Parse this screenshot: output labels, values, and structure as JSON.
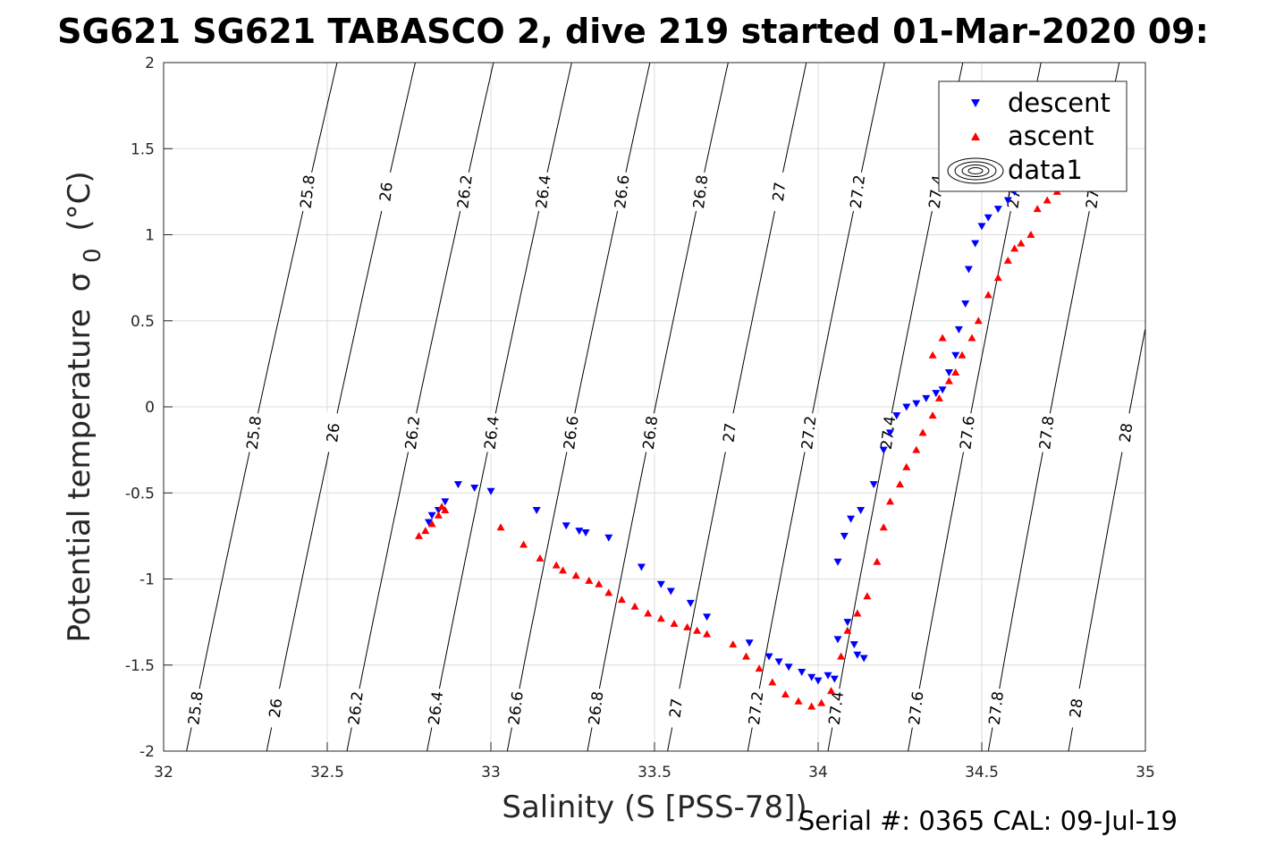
{
  "chart_data": {
    "type": "scatter",
    "title": "SG621 SG621 TABASCO 2, dive 219 started 01-Mar-2020 09:",
    "xlabel": "Salinity (S [PSS-78])",
    "ylabel": "Potential temperature",
    "ylabel_symbol": "σ",
    "ylabel_sub": "0",
    "ylabel_unit": "(°C)",
    "xlim": [
      32,
      35
    ],
    "ylim": [
      -2,
      2
    ],
    "xticks": [
      32,
      32.5,
      33,
      33.5,
      34,
      34.5,
      35
    ],
    "xtick_labels": [
      "32",
      "32.5",
      "33",
      "33.5",
      "34",
      "34.5",
      "35"
    ],
    "yticks": [
      -2,
      -1.5,
      -1,
      -0.5,
      0,
      0.5,
      1,
      1.5,
      2
    ],
    "ytick_labels": [
      "-2",
      "-1.5",
      "-1",
      "-0.5",
      "0",
      "0.5",
      "1",
      "1.5",
      "2"
    ],
    "grid": true,
    "legend_placement": "top-right",
    "contours": {
      "levels": [
        25.8,
        26,
        26.2,
        26.4,
        26.6,
        26.8,
        27,
        27.2,
        27.4,
        27.6,
        27.8,
        28
      ],
      "labels": [
        "25.8",
        "26",
        "26.2",
        "26.4",
        "26.6",
        "26.8",
        "27",
        "27.2",
        "27.4",
        "27.6",
        "27.8",
        "28"
      ],
      "color": "#000000"
    },
    "series": [
      {
        "name": "descent",
        "marker": "triangle-down",
        "color": "#0000ff",
        "x": [
          32.82,
          32.84,
          32.81,
          32.86,
          32.9,
          32.95,
          33.0,
          33.14,
          33.23,
          33.27,
          33.29,
          33.36,
          33.46,
          33.52,
          33.55,
          33.61,
          33.66,
          33.79,
          33.85,
          33.88,
          33.91,
          33.95,
          33.98,
          34.0,
          34.03,
          34.05,
          34.06,
          34.09,
          34.11,
          34.12,
          34.14,
          34.06,
          34.08,
          34.1,
          34.13,
          34.17,
          34.2,
          34.22,
          34.24,
          34.27,
          34.3,
          34.33,
          34.36,
          34.38,
          34.4,
          34.42,
          34.43,
          34.45,
          34.46,
          34.48,
          34.5,
          34.52,
          34.55,
          34.58,
          34.6
        ],
        "y": [
          -0.63,
          -0.6,
          -0.67,
          -0.55,
          -0.45,
          -0.47,
          -0.49,
          -0.6,
          -0.69,
          -0.72,
          -0.73,
          -0.76,
          -0.93,
          -1.03,
          -1.07,
          -1.14,
          -1.22,
          -1.37,
          -1.45,
          -1.48,
          -1.51,
          -1.54,
          -1.57,
          -1.59,
          -1.56,
          -1.58,
          -1.35,
          -1.25,
          -1.38,
          -1.44,
          -1.46,
          -0.9,
          -0.75,
          -0.65,
          -0.6,
          -0.45,
          -0.25,
          -0.15,
          -0.05,
          0.0,
          0.02,
          0.05,
          0.08,
          0.1,
          0.2,
          0.3,
          0.45,
          0.6,
          0.8,
          0.95,
          1.05,
          1.1,
          1.15,
          1.2,
          1.25
        ]
      },
      {
        "name": "ascent",
        "marker": "triangle-up",
        "color": "#ff0000",
        "x": [
          32.78,
          32.8,
          32.82,
          32.84,
          32.86,
          32.85,
          33.03,
          33.1,
          33.15,
          33.2,
          33.22,
          33.26,
          33.3,
          33.33,
          33.36,
          33.4,
          33.44,
          33.48,
          33.52,
          33.56,
          33.6,
          33.63,
          33.66,
          33.74,
          33.78,
          33.82,
          33.86,
          33.9,
          33.94,
          33.98,
          34.01,
          34.04,
          34.07,
          34.09,
          34.12,
          34.15,
          34.18,
          34.2,
          34.22,
          34.25,
          34.27,
          34.3,
          34.32,
          34.35,
          34.37,
          34.4,
          34.42,
          34.44,
          34.47,
          34.49,
          34.52,
          34.55,
          34.58,
          34.6,
          34.62,
          34.65,
          34.67,
          34.7,
          34.72,
          34.73,
          34.35,
          34.38
        ],
        "y": [
          -0.75,
          -0.72,
          -0.68,
          -0.63,
          -0.6,
          -0.58,
          -0.7,
          -0.8,
          -0.88,
          -0.92,
          -0.95,
          -0.98,
          -1.01,
          -1.03,
          -1.08,
          -1.12,
          -1.16,
          -1.2,
          -1.23,
          -1.26,
          -1.28,
          -1.3,
          -1.32,
          -1.38,
          -1.45,
          -1.52,
          -1.6,
          -1.67,
          -1.71,
          -1.74,
          -1.72,
          -1.65,
          -1.45,
          -1.3,
          -1.2,
          -1.1,
          -0.9,
          -0.7,
          -0.55,
          -0.45,
          -0.35,
          -0.25,
          -0.15,
          -0.05,
          0.05,
          0.15,
          0.2,
          0.3,
          0.4,
          0.5,
          0.65,
          0.75,
          0.85,
          0.92,
          0.95,
          1.0,
          1.15,
          1.2,
          1.3,
          1.25,
          0.3,
          0.4
        ]
      },
      {
        "name": "data1",
        "marker": "contour",
        "color": "#000000",
        "x": [],
        "y": []
      }
    ]
  },
  "footer": {
    "serial_text": "Serial #: 0365  CAL: 09-Jul-19"
  }
}
